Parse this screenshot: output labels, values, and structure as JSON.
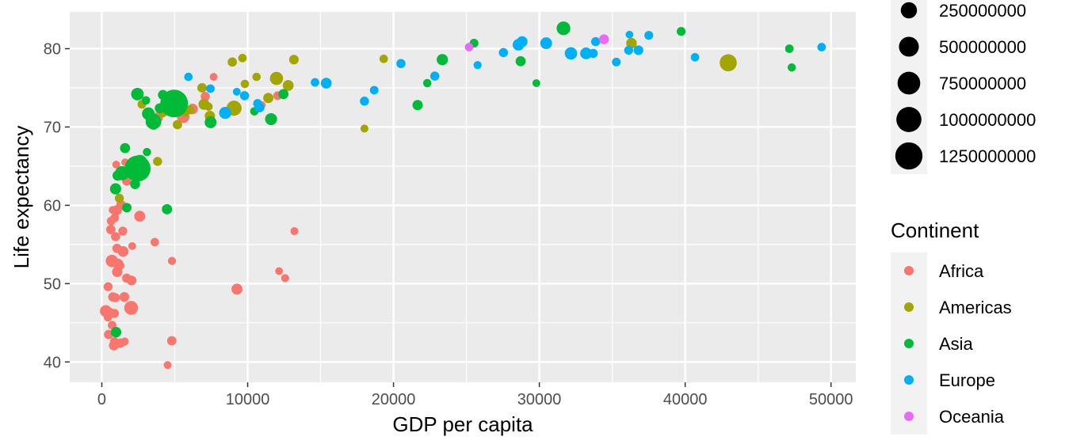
{
  "chart_data": {
    "type": "scatter",
    "title": "",
    "xlabel": "GDP per capita",
    "ylabel": "Life expectancy",
    "xlim": [
      -2200,
      51700
    ],
    "ylim": [
      37.4,
      84.7
    ],
    "x_ticks": [
      0,
      10000,
      20000,
      30000,
      40000,
      50000
    ],
    "y_ticks": [
      40,
      50,
      60,
      70,
      80
    ],
    "x_tick_labels": [
      "0",
      "10000",
      "20000",
      "30000",
      "40000",
      "50000"
    ],
    "y_tick_labels": [
      "40",
      "50",
      "60",
      "70",
      "80"
    ],
    "grid": true,
    "size_legend": {
      "title": "",
      "values": [
        250000000,
        500000000,
        750000000,
        1000000000,
        1250000000
      ],
      "labels": [
        "250000000",
        "500000000",
        "750000000",
        "1000000000",
        "1250000000"
      ]
    },
    "color_legend": {
      "title": "Continent",
      "placement": "right"
    },
    "series": [
      {
        "name": "Africa",
        "color": "#F8766D",
        "points": [
          [
            6223,
            72.3,
            33000000
          ],
          [
            4797,
            42.7,
            12400000
          ],
          [
            1441,
            56.7,
            8100000
          ],
          [
            12570,
            50.7,
            1600000
          ],
          [
            1217,
            52.3,
            14300000
          ],
          [
            430,
            49.6,
            8400000
          ],
          [
            2042,
            50.4,
            17700000
          ],
          [
            706,
            44.7,
            4400000
          ],
          [
            1704,
            50.7,
            10200000
          ],
          [
            986,
            65.2,
            700000
          ],
          [
            278,
            46.5,
            64600000
          ],
          [
            3633,
            55.3,
            3800000
          ],
          [
            1545,
            48.3,
            18000000
          ],
          [
            2082,
            54.8,
            500000
          ],
          [
            5581,
            71.3,
            80300000
          ],
          [
            12154,
            51.6,
            500000
          ],
          [
            641,
            58.0,
            4900000
          ],
          [
            690,
            52.9,
            76500000
          ],
          [
            13206,
            56.7,
            1500000
          ],
          [
            753,
            59.4,
            1700000
          ],
          [
            1328,
            60.0,
            22900000
          ],
          [
            943,
            56.0,
            9900000
          ],
          [
            579,
            46.4,
            1500000
          ],
          [
            1463,
            54.1,
            35600000
          ],
          [
            1569,
            42.6,
            2000000
          ],
          [
            415,
            45.7,
            3200000
          ],
          [
            12057,
            74.0,
            6000000
          ],
          [
            1045,
            59.4,
            19200000
          ],
          [
            759,
            48.3,
            13300000
          ],
          [
            1042,
            54.5,
            12000000
          ],
          [
            1803,
            64.2,
            3300000
          ],
          [
            10957,
            72.8,
            1250000
          ],
          [
            3820,
            71.2,
            33800000
          ],
          [
            824,
            42.1,
            19900000
          ],
          [
            4811,
            52.9,
            2100000
          ],
          [
            620,
            56.9,
            12900000
          ],
          [
            2014,
            46.9,
            135000000
          ],
          [
            7670,
            76.4,
            800000
          ],
          [
            863,
            46.2,
            8900000
          ],
          [
            1598,
            65.5,
            200000
          ],
          [
            1712,
            63.1,
            12300000
          ],
          [
            862,
            42.6,
            6100000
          ],
          [
            926,
            48.2,
            9100000
          ],
          [
            9270,
            49.3,
            43900000
          ],
          [
            2602,
            58.6,
            42300000
          ],
          [
            4513,
            39.6,
            1100000
          ],
          [
            1107,
            52.5,
            38100000
          ],
          [
            883,
            58.4,
            5700000
          ],
          [
            7093,
            73.9,
            10300000
          ],
          [
            1056,
            51.5,
            29200000
          ],
          [
            1271,
            42.4,
            11700000
          ],
          [
            470,
            43.5,
            12300000
          ]
        ]
      },
      {
        "name": "Americas",
        "color": "#A3A500",
        "points": [
          [
            12779,
            75.3,
            40300000
          ],
          [
            3822,
            65.6,
            9100000
          ],
          [
            9066,
            72.4,
            190000000
          ],
          [
            36319,
            80.7,
            33400000
          ],
          [
            13172,
            78.6,
            16300000
          ],
          [
            7007,
            72.9,
            44200000
          ],
          [
            9645,
            78.8,
            4100000
          ],
          [
            8948,
            78.3,
            11400000
          ],
          [
            6025,
            72.2,
            9300000
          ],
          [
            6873,
            75.0,
            13800000
          ],
          [
            5728,
            71.9,
            6900000
          ],
          [
            5186,
            70.3,
            12600000
          ],
          [
            1202,
            60.9,
            8500000
          ],
          [
            3548,
            70.2,
            7500000
          ],
          [
            7321,
            72.6,
            2800000
          ],
          [
            11978,
            76.2,
            108700000
          ],
          [
            2749,
            72.9,
            5700000
          ],
          [
            9809,
            75.5,
            3200000
          ],
          [
            4173,
            71.8,
            6700000
          ],
          [
            7409,
            71.4,
            28700000
          ],
          [
            19329,
            78.7,
            3900000
          ],
          [
            18008,
            69.8,
            1100000
          ],
          [
            42952,
            78.2,
            301100000
          ],
          [
            10611,
            76.4,
            3400000
          ],
          [
            11416,
            73.7,
            26100000
          ]
        ]
      },
      {
        "name": "Asia",
        "color": "#00BA38",
        "points": [
          [
            975,
            43.8,
            31900000
          ],
          [
            29796,
            75.6,
            700000
          ],
          [
            1391,
            64.1,
            150400000
          ],
          [
            1714,
            59.7,
            14100000
          ],
          [
            4959,
            73.0,
            1318700000
          ],
          [
            39725,
            82.2,
            6900000
          ],
          [
            2452,
            64.7,
            1110400000
          ],
          [
            3541,
            70.7,
            223500000
          ],
          [
            11606,
            71.0,
            69500000
          ],
          [
            4471,
            59.5,
            27500000
          ],
          [
            25523,
            80.7,
            6400000
          ],
          [
            31656,
            82.6,
            127500000
          ],
          [
            4519,
            72.5,
            6100000
          ],
          [
            1593,
            67.3,
            23300000
          ],
          [
            23348,
            78.6,
            49000000
          ],
          [
            47307,
            77.6,
            2500000
          ],
          [
            10461,
            72.0,
            3900000
          ],
          [
            12452,
            74.2,
            24800000
          ],
          [
            3096,
            66.8,
            2900000
          ],
          [
            944,
            62.1,
            47800000
          ],
          [
            1091,
            63.8,
            28900000
          ],
          [
            22316,
            75.6,
            3200000
          ],
          [
            2606,
            65.5,
            169300000
          ],
          [
            3190,
            71.7,
            91100000
          ],
          [
            21655,
            72.8,
            27600000
          ],
          [
            47143,
            80.0,
            4600000
          ],
          [
            3970,
            72.4,
            20400000
          ],
          [
            4185,
            74.1,
            19300000
          ],
          [
            28718,
            78.4,
            23200000
          ],
          [
            7458,
            70.6,
            65100000
          ],
          [
            2442,
            74.2,
            85300000
          ],
          [
            3025,
            73.4,
            4000000
          ],
          [
            2281,
            62.7,
            22200000
          ]
        ]
      },
      {
        "name": "Europe",
        "color": "#00B0F6",
        "points": [
          [
            5937,
            76.4,
            3600000
          ],
          [
            36126,
            79.8,
            8200000
          ],
          [
            33693,
            79.4,
            10400000
          ],
          [
            7446,
            74.9,
            4600000
          ],
          [
            10681,
            73.0,
            7300000
          ],
          [
            14619,
            75.7,
            4500000
          ],
          [
            22833,
            76.5,
            10200000
          ],
          [
            35278,
            78.3,
            5500000
          ],
          [
            33207,
            79.3,
            5200000
          ],
          [
            30470,
            80.7,
            61100000
          ],
          [
            32170,
            79.4,
            82400000
          ],
          [
            27538,
            79.5,
            10700000
          ],
          [
            18009,
            73.3,
            10000000
          ],
          [
            36181,
            81.8,
            300000
          ],
          [
            40676,
            78.9,
            4100000
          ],
          [
            28570,
            80.5,
            58100000
          ],
          [
            9254,
            74.5,
            700000
          ],
          [
            36798,
            79.8,
            16600000
          ],
          [
            49357,
            80.2,
            4600000
          ],
          [
            15390,
            75.6,
            38500000
          ],
          [
            20510,
            78.1,
            10600000
          ],
          [
            10808,
            72.5,
            22300000
          ],
          [
            9787,
            74.0,
            10200000
          ],
          [
            18678,
            74.7,
            5400000
          ],
          [
            25768,
            77.9,
            2000000
          ],
          [
            28821,
            80.9,
            40400000
          ],
          [
            33860,
            80.9,
            9000000
          ],
          [
            37506,
            81.7,
            7600000
          ],
          [
            8458,
            71.8,
            71200000
          ],
          [
            33203,
            79.4,
            60800000
          ]
        ]
      },
      {
        "name": "Oceania",
        "color": "#E76BF3",
        "points": [
          [
            34435,
            81.2,
            20400000
          ],
          [
            25185,
            80.2,
            4100000
          ]
        ]
      }
    ]
  }
}
